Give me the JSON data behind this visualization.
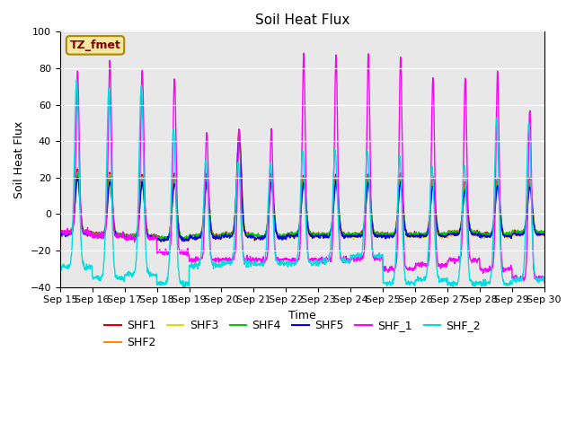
{
  "title": "Soil Heat Flux",
  "xlabel": "Time",
  "ylabel": "Soil Heat Flux",
  "ylim": [
    -40,
    100
  ],
  "yticks": [
    -40,
    -20,
    0,
    20,
    40,
    60,
    80,
    100
  ],
  "x_labels": [
    "Sep 15",
    "Sep 16",
    "Sep 17",
    "Sep 18",
    "Sep 19",
    "Sep 20",
    "Sep 21",
    "Sep 22",
    "Sep 23",
    "Sep 24",
    "Sep 25",
    "Sep 26",
    "Sep 27",
    "Sep 28",
    "Sep 29",
    "Sep 30"
  ],
  "station_label": "TZ_fmet",
  "series_names": [
    "SHF1",
    "SHF2",
    "SHF3",
    "SHF4",
    "SHF5",
    "SHF_1",
    "SHF_2"
  ],
  "series_colors": [
    "#dd0000",
    "#ff8800",
    "#dddd00",
    "#00cc00",
    "#0000ee",
    "#ff00ff",
    "#00dddd"
  ],
  "background_color": "#ffffff",
  "plot_bg_color": "#e8e8e8",
  "title_fontsize": 11,
  "axis_label_fontsize": 9,
  "tick_fontsize": 8,
  "legend_fontsize": 9,
  "n_pts": 1440,
  "n_days": 15,
  "shf15_day_peaks": [
    25,
    23,
    22,
    22,
    22,
    46,
    22,
    22,
    22,
    22,
    22,
    20,
    18,
    20,
    20
  ],
  "shf15_night_vals": [
    -10,
    -11,
    -12,
    -13,
    -12,
    -11,
    -12,
    -11,
    -11,
    -11,
    -11,
    -11,
    -10,
    -11,
    -10
  ],
  "shf_1_peaks": [
    79,
    83,
    80,
    75,
    46,
    47,
    46,
    87,
    87,
    87,
    85,
    75,
    75,
    77,
    57
  ],
  "shf_1_night": [
    -10,
    -12,
    -13,
    -21,
    -25,
    -25,
    -25,
    -25,
    -25,
    -24,
    -30,
    -28,
    -25,
    -30,
    -35
  ],
  "shf_2_peaks": [
    73,
    69,
    70,
    47,
    29,
    29,
    28,
    35,
    35,
    34,
    32,
    26,
    27,
    51,
    50
  ],
  "shf_2_night": [
    -29,
    -35,
    -33,
    -38,
    -28,
    -27,
    -27,
    -27,
    -26,
    -23,
    -38,
    -36,
    -38,
    -38,
    -36
  ]
}
